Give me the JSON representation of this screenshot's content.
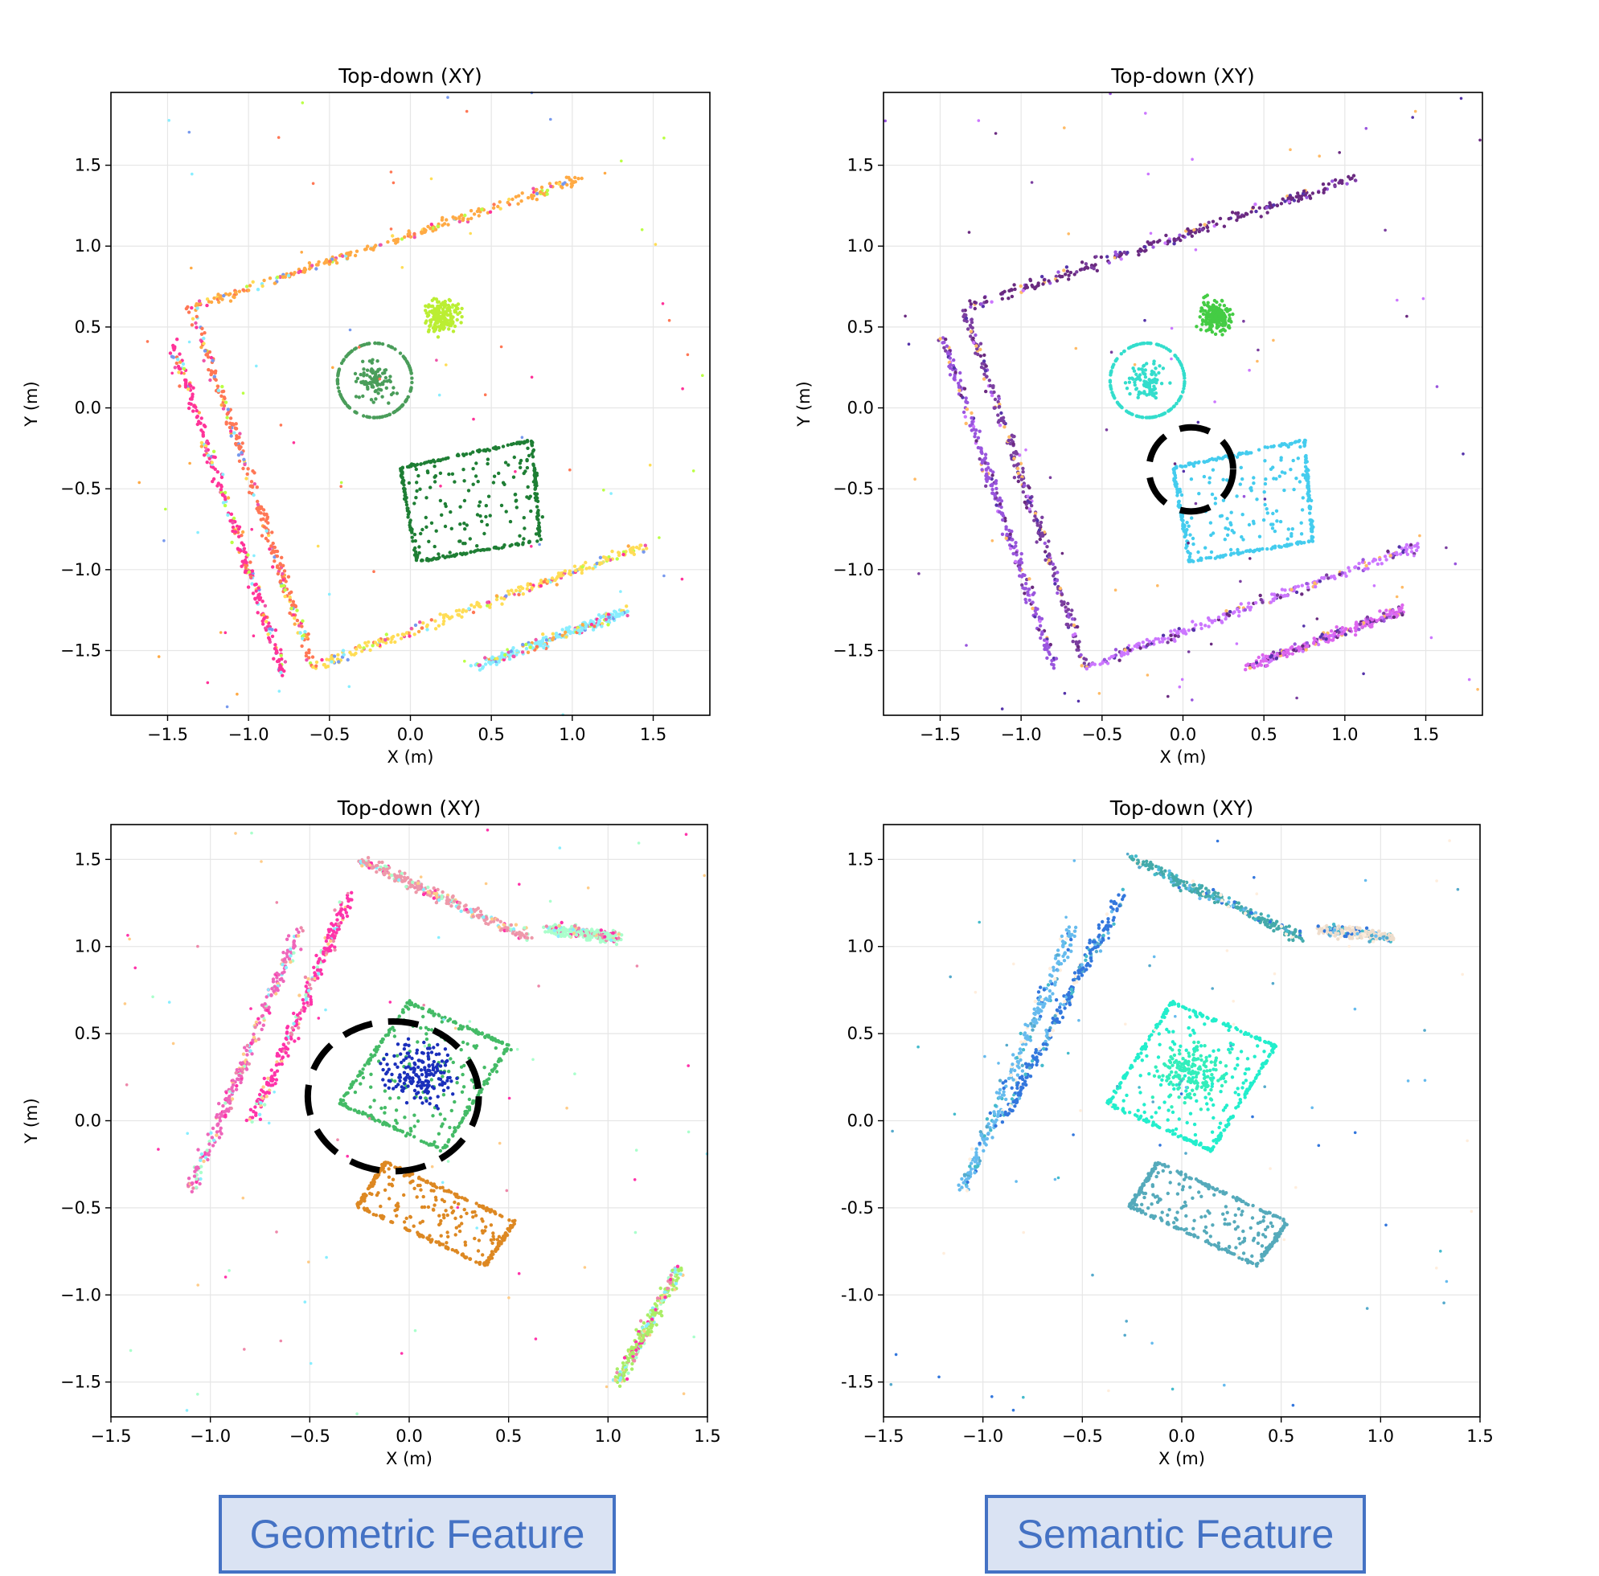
{
  "chart_data": [
    {
      "type": "scatter",
      "title": "Top-down (XY)",
      "xlabel": "X (m)",
      "ylabel": "Y (m)",
      "xlim": [
        -1.85,
        1.85
      ],
      "ylim": [
        -1.9,
        1.95
      ],
      "xticks": [
        -1.5,
        -1.0,
        -0.5,
        0.0,
        0.5,
        1.0,
        1.5
      ],
      "yticks": [
        -1.5,
        -1.0,
        -0.5,
        0.0,
        0.5,
        1.0,
        1.5
      ],
      "xtick_labels": [
        "−1.5",
        "−1.0",
        "−0.5",
        "0.0",
        "0.5",
        "1.0",
        "1.5"
      ],
      "ytick_labels": [
        "−1.5",
        "−1.0",
        "−0.5",
        "0.0",
        "0.5",
        "1.0",
        "1.5"
      ],
      "grid": true,
      "colors": [
        "#ff3399",
        "#ffaa44",
        "#ff7755",
        "#7799ee",
        "#bbff44",
        "#ffdd55",
        "#88eeff",
        "#ee55aa"
      ],
      "structures": [
        {
          "shape": "polyline",
          "points": [
            [
              -1.35,
              0.62
            ],
            [
              1.05,
              1.42
            ]
          ],
          "color": "#ffaa44"
        },
        {
          "shape": "polyline",
          "points": [
            [
              -1.35,
              0.62
            ],
            [
              -0.6,
              -1.6
            ]
          ],
          "color": "#ff7755"
        },
        {
          "shape": "polyline",
          "points": [
            [
              -0.6,
              -1.6
            ],
            [
              1.45,
              -0.85
            ]
          ],
          "color": "#ffdd55"
        },
        {
          "shape": "polyline",
          "points": [
            [
              0.4,
              -1.6
            ],
            [
              1.35,
              -1.25
            ]
          ],
          "color": "#88eeff"
        },
        {
          "shape": "polyline",
          "points": [
            [
              -1.48,
              0.42
            ],
            [
              -0.78,
              -1.65
            ]
          ],
          "color": "#ff3399"
        },
        {
          "shape": "circle",
          "center": [
            -0.22,
            0.17
          ],
          "radius": 0.23,
          "color": "#4a9d5a"
        },
        {
          "shape": "blob",
          "center": [
            0.2,
            0.57
          ],
          "radius": 0.12,
          "color": "#bbee33"
        },
        {
          "shape": "rect",
          "corners": [
            [
              -0.06,
              -0.37
            ],
            [
              0.75,
              -0.2
            ],
            [
              0.8,
              -0.82
            ],
            [
              0.04,
              -0.95
            ]
          ],
          "color": "#1e7e34"
        }
      ]
    },
    {
      "type": "scatter",
      "title": "Top-down (XY)",
      "xlabel": "X (m)",
      "ylabel": "Y (m)",
      "xlim": [
        -1.85,
        1.85
      ],
      "ylim": [
        -1.9,
        1.95
      ],
      "xticks": [
        -1.5,
        -1.0,
        -0.5,
        0.0,
        0.5,
        1.0,
        1.5
      ],
      "yticks": [
        -1.5,
        -1.0,
        -0.5,
        0.0,
        0.5,
        1.0,
        1.5
      ],
      "xtick_labels": [
        "−1.5",
        "−1.0",
        "−0.5",
        "0.0",
        "0.5",
        "1.0",
        "1.5"
      ],
      "ytick_labels": [
        "−1.5",
        "−1.0",
        "−0.5",
        "0.0",
        "0.5",
        "1.0",
        "1.5"
      ],
      "grid": true,
      "colors": [
        "#7b3fa0",
        "#9955dd",
        "#6a2a80",
        "#ffbb66",
        "#cc77ff",
        "#5533aa"
      ],
      "structures": [
        {
          "shape": "polyline",
          "points": [
            [
              -1.35,
              0.62
            ],
            [
              1.05,
              1.42
            ]
          ],
          "color": "#6a2a80"
        },
        {
          "shape": "polyline",
          "points": [
            [
              -1.35,
              0.62
            ],
            [
              -0.6,
              -1.6
            ]
          ],
          "color": "#7b3fa0"
        },
        {
          "shape": "polyline",
          "points": [
            [
              -0.6,
              -1.6
            ],
            [
              1.45,
              -0.85
            ]
          ],
          "color": "#cc77ff"
        },
        {
          "shape": "polyline",
          "points": [
            [
              0.4,
              -1.6
            ],
            [
              1.35,
              -1.25
            ]
          ],
          "color": "#dd66ee"
        },
        {
          "shape": "polyline",
          "points": [
            [
              -1.48,
              0.42
            ],
            [
              -0.78,
              -1.65
            ]
          ],
          "color": "#9955dd"
        },
        {
          "shape": "circle",
          "center": [
            -0.22,
            0.17
          ],
          "radius": 0.23,
          "color": "#33ddcc"
        },
        {
          "shape": "blob",
          "center": [
            0.2,
            0.57
          ],
          "radius": 0.12,
          "color": "#44cc44"
        },
        {
          "shape": "rect",
          "corners": [
            [
              -0.06,
              -0.37
            ],
            [
              0.75,
              -0.2
            ],
            [
              0.8,
              -0.82
            ],
            [
              0.04,
              -0.95
            ]
          ],
          "color": "#44ccee"
        }
      ],
      "annotation_circle": {
        "center": [
          0.05,
          -0.38
        ],
        "radius": 0.26
      }
    },
    {
      "type": "scatter",
      "title": "Top-down (XY)",
      "xlabel": "X (m)",
      "ylabel": "Y (m)",
      "xlim": [
        -1.5,
        1.5
      ],
      "ylim": [
        -1.7,
        1.7
      ],
      "xticks": [
        -1.5,
        -1.0,
        -0.5,
        0.0,
        0.5,
        1.0,
        1.5
      ],
      "yticks": [
        -1.5,
        -1.0,
        -0.5,
        0.0,
        0.5,
        1.0,
        1.5
      ],
      "xtick_labels": [
        "−1.5",
        "−1.0",
        "−0.5",
        "0.0",
        "0.5",
        "1.0",
        "1.5"
      ],
      "ytick_labels": [
        "−1.5",
        "−1.0",
        "−0.5",
        "0.0",
        "0.5",
        "1.0",
        "1.5"
      ],
      "grid": true,
      "colors": [
        "#ff33aa",
        "#ee88aa",
        "#aaffcc",
        "#88eeff",
        "#ffcc88"
      ],
      "structures": [
        {
          "shape": "polyline",
          "points": [
            [
              -0.78,
              0.0
            ],
            [
              -0.3,
              1.3
            ]
          ],
          "color": "#ff33aa"
        },
        {
          "shape": "polyline",
          "points": [
            [
              -1.1,
              -0.4
            ],
            [
              -0.55,
              1.1
            ]
          ],
          "color": "#ee66bb"
        },
        {
          "shape": "polyline",
          "points": [
            [
              -0.25,
              1.5
            ],
            [
              0.6,
              1.05
            ]
          ],
          "color": "#ee99aa"
        },
        {
          "shape": "polyline",
          "points": [
            [
              0.7,
              1.1
            ],
            [
              1.05,
              1.05
            ]
          ],
          "color": "#aaffcc"
        },
        {
          "shape": "polyline",
          "points": [
            [
              1.05,
              -1.5
            ],
            [
              1.35,
              -0.85
            ]
          ],
          "color": "#aaee66"
        },
        {
          "shape": "rect",
          "corners": [
            [
              -0.35,
              0.1
            ],
            [
              0.0,
              0.68
            ],
            [
              0.5,
              0.43
            ],
            [
              0.17,
              -0.17
            ]
          ],
          "color": "#44bb66"
        },
        {
          "shape": "blob",
          "center": [
            0.05,
            0.27
          ],
          "radius": 0.2,
          "color": "#1a2fbb"
        },
        {
          "shape": "rect",
          "corners": [
            [
              -0.26,
              -0.49
            ],
            [
              -0.12,
              -0.24
            ],
            [
              0.53,
              -0.58
            ],
            [
              0.38,
              -0.83
            ]
          ],
          "color": "#dd8822"
        }
      ],
      "annotation_circle": {
        "center": [
          -0.08,
          0.14
        ],
        "radius": 0.43
      }
    },
    {
      "type": "scatter",
      "title": "Top-down (XY)",
      "xlabel": "X (m)",
      "ylabel": "",
      "xlim": [
        -1.5,
        1.5
      ],
      "ylim": [
        -1.7,
        1.7
      ],
      "xticks": [
        -1.5,
        -1.0,
        -0.5,
        0.0,
        0.5,
        1.0,
        1.5
      ],
      "yticks": [
        -1.5,
        -1.0,
        -0.5,
        0.0,
        0.5,
        1.0,
        1.5
      ],
      "xtick_labels": [
        "−1.5",
        "−1.0",
        "−0.5",
        "0.0",
        "0.5",
        "1.0",
        "1.5"
      ],
      "ytick_labels": [
        "-1.5",
        "-1.0",
        "-0.5",
        "0.0",
        "0.5",
        "1.0",
        "1.5"
      ],
      "grid": true,
      "colors": [
        "#3377dd",
        "#66bbee",
        "#55aacc",
        "#44bbcc",
        "#ffeedd"
      ],
      "structures": [
        {
          "shape": "polyline",
          "points": [
            [
              -0.9,
              0.0
            ],
            [
              -0.3,
              1.3
            ]
          ],
          "color": "#3377dd"
        },
        {
          "shape": "polyline",
          "points": [
            [
              -1.1,
              -0.4
            ],
            [
              -0.55,
              1.1
            ]
          ],
          "color": "#66bbee"
        },
        {
          "shape": "polyline",
          "points": [
            [
              -0.25,
              1.5
            ],
            [
              0.6,
              1.05
            ]
          ],
          "color": "#44aaaa"
        },
        {
          "shape": "polyline",
          "points": [
            [
              0.7,
              1.1
            ],
            [
              1.05,
              1.05
            ]
          ],
          "color": "#eeddcc"
        },
        {
          "shape": "rect",
          "corners": [
            [
              -0.37,
              0.1
            ],
            [
              -0.05,
              0.68
            ],
            [
              0.47,
              0.43
            ],
            [
              0.15,
              -0.17
            ]
          ],
          "color": "#22eecc"
        },
        {
          "shape": "blob",
          "center": [
            0.05,
            0.27
          ],
          "radius": 0.2,
          "color": "#33eebb"
        },
        {
          "shape": "rect",
          "corners": [
            [
              -0.26,
              -0.49
            ],
            [
              -0.12,
              -0.24
            ],
            [
              0.53,
              -0.58
            ],
            [
              0.38,
              -0.83
            ]
          ],
          "color": "#55aabb"
        }
      ]
    }
  ],
  "labels": {
    "geometric": "Geometric Feature",
    "semantic": "Semantic Feature"
  }
}
